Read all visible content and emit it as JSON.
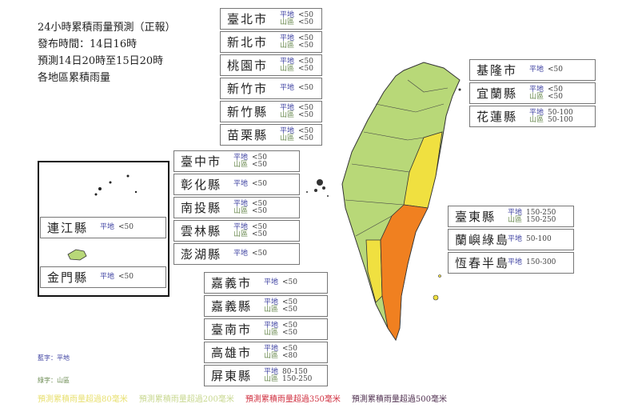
{
  "header": {
    "lines": [
      "24小時累積雨量預測（正報）",
      "發布時間：14日16時",
      "預測14日20時至15日20時",
      "各地區累積雨量"
    ]
  },
  "labels": {
    "plain": "平地",
    "mountain": "山區"
  },
  "regions": [
    {
      "id": "taipei-city",
      "name": "臺北市",
      "plain": "<50",
      "mountain": "<50"
    },
    {
      "id": "new-taipei-city",
      "name": "新北市",
      "plain": "<50",
      "mountain": "<50"
    },
    {
      "id": "taoyuan-city",
      "name": "桃園市",
      "plain": "<50",
      "mountain": "<50"
    },
    {
      "id": "hsinchu-city",
      "name": "新竹市",
      "plain": "<50"
    },
    {
      "id": "hsinchu-county",
      "name": "新竹縣",
      "plain": "<50",
      "mountain": "<50"
    },
    {
      "id": "miaoli-county",
      "name": "苗栗縣",
      "plain": "<50",
      "mountain": "<50"
    },
    {
      "id": "taichung-city",
      "name": "臺中市",
      "plain": "<50",
      "mountain": "<50"
    },
    {
      "id": "changhua-county",
      "name": "彰化縣",
      "plain": "<50"
    },
    {
      "id": "nantou-county",
      "name": "南投縣",
      "plain": "<50",
      "mountain": "<50"
    },
    {
      "id": "yunlin-county",
      "name": "雲林縣",
      "plain": "<50",
      "mountain": "<50"
    },
    {
      "id": "penghu-county",
      "name": "澎湖縣",
      "plain": "<50"
    },
    {
      "id": "chiayi-city",
      "name": "嘉義市",
      "plain": "<50"
    },
    {
      "id": "chiayi-county",
      "name": "嘉義縣",
      "plain": "<50",
      "mountain": "<50"
    },
    {
      "id": "tainan-city",
      "name": "臺南市",
      "plain": "<50",
      "mountain": "<50"
    },
    {
      "id": "kaohsiung-city",
      "name": "高雄市",
      "plain": "<50",
      "mountain": "<80"
    },
    {
      "id": "pingtung-county",
      "name": "屏東縣",
      "plain": "80-150",
      "mountain": "150-250"
    },
    {
      "id": "keelung-city",
      "name": "基隆市",
      "plain": "<50"
    },
    {
      "id": "yilan-county",
      "name": "宜蘭縣",
      "plain": "<50",
      "mountain": "<50"
    },
    {
      "id": "hualien-county",
      "name": "花蓮縣",
      "plain": "50-100",
      "mountain": "50-100"
    },
    {
      "id": "taitung-county",
      "name": "臺東縣",
      "plain": "150-250",
      "mountain": "150-250"
    },
    {
      "id": "lanyu-green-island",
      "name": "蘭嶼綠島",
      "plain": "50-100"
    },
    {
      "id": "hengchun-peninsula",
      "name": "恆春半島",
      "plain": "150-300"
    },
    {
      "id": "lienchiang-county",
      "name": "連江縣",
      "plain": "<50"
    },
    {
      "id": "kinmen-county",
      "name": "金門縣",
      "plain": "<50"
    }
  ],
  "notes": {
    "blue": "藍字：平地",
    "green": "綠字：山區"
  },
  "legend": [
    {
      "label": "預測累積雨量超過80毫米",
      "color": "#e8e070"
    },
    {
      "label": "預測累積雨量超過200毫米",
      "color": "#c8d890"
    },
    {
      "label": "預測累積雨量超過350毫米",
      "color": "#d03040"
    },
    {
      "label": "預測累積雨量超過500毫米",
      "color": "#503050"
    }
  ],
  "map_colors": {
    "under_50": "#b8d878",
    "50_100": "#f0e040",
    "150_plus": "#f08020"
  }
}
